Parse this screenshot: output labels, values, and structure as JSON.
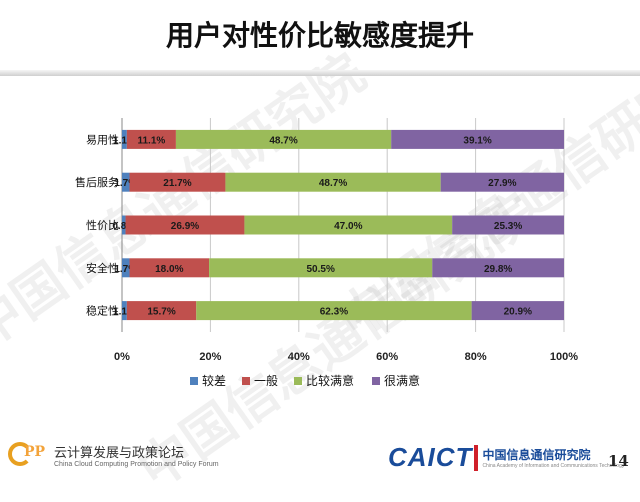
{
  "title": "用户对性价比敏感度提升",
  "watermark": "中国信息通信研究院",
  "colors": {
    "较差": "#4f81bd",
    "一般": "#c0504d",
    "比较满意": "#9bbb59",
    "很满意": "#8064a2"
  },
  "chart_data": {
    "type": "bar",
    "orientation": "horizontal",
    "stacked": "percent",
    "categories": [
      "易用性",
      "售后服务",
      "性价比",
      "安全性",
      "稳定性"
    ],
    "series": [
      {
        "name": "较差",
        "values": [
          1.1,
          1.7,
          0.8,
          1.7,
          1.1
        ],
        "labels": [
          "1.1%",
          "1.7%",
          "0.8%",
          "1.7%",
          "1.1%"
        ]
      },
      {
        "name": "一般",
        "values": [
          11.1,
          21.7,
          26.9,
          18.0,
          15.7
        ],
        "labels": [
          "11.1%",
          "21.7%",
          "26.9%",
          "18.0%",
          "15.7%"
        ]
      },
      {
        "name": "比较满意",
        "values": [
          48.7,
          48.7,
          47.0,
          50.5,
          62.3
        ],
        "labels": [
          "48.7%",
          "48.7%",
          "47.0%",
          "50.5%",
          "62.3%"
        ]
      },
      {
        "name": "很满意",
        "values": [
          39.1,
          27.9,
          25.3,
          29.8,
          20.9
        ],
        "labels": [
          "39.1%",
          "27.9%",
          "25.3%",
          "29.8%",
          "20.9%"
        ]
      }
    ],
    "xticks": [
      "0%",
      "20%",
      "40%",
      "60%",
      "80%",
      "100%"
    ],
    "xlim": [
      0,
      100
    ],
    "legend": "bottom"
  },
  "footer": {
    "forum_title": "云计算发展与政策论坛",
    "forum_subtitle": "China Cloud Computing Promotion and Policy Forum",
    "logo_text": "CAICT",
    "org_name": "中国信息通信研究院",
    "org_subtitle": "China Academy of Information and Communications Technology",
    "page_number": "14"
  }
}
